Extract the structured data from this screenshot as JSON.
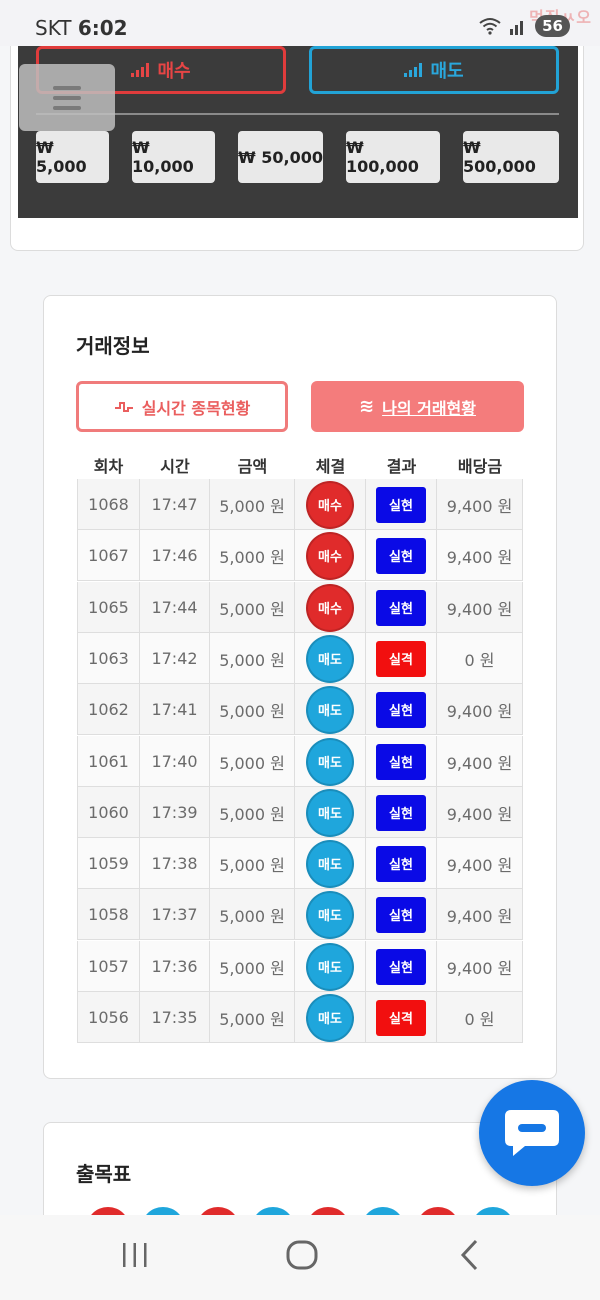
{
  "status_bar": {
    "carrier": "SKT",
    "time": "6:02",
    "battery": "56",
    "watermark": "먹짐ㅆ오"
  },
  "trade_panel": {
    "buy_label": "매수",
    "sell_label": "매도",
    "amounts": [
      "₩ 5,000",
      "₩ 10,000",
      "₩ 50,000",
      "₩ 100,000",
      "₩ 500,000"
    ]
  },
  "trade_info": {
    "title": "거래정보",
    "tab_live": "실시간 종목현황",
    "tab_mine": "나의 거래현황",
    "columns": [
      "회차",
      "시간",
      "금액",
      "체결",
      "결과",
      "배당금"
    ],
    "rows": [
      {
        "round": "1068",
        "time": "17:47",
        "amount": "5,000 원",
        "exec": "매수",
        "result": "실현",
        "payout": "9,400 원"
      },
      {
        "round": "1067",
        "time": "17:46",
        "amount": "5,000 원",
        "exec": "매수",
        "result": "실현",
        "payout": "9,400 원"
      },
      {
        "round": "1065",
        "time": "17:44",
        "amount": "5,000 원",
        "exec": "매수",
        "result": "실현",
        "payout": "9,400 원"
      },
      {
        "round": "1063",
        "time": "17:42",
        "amount": "5,000 원",
        "exec": "매도",
        "result": "실격",
        "payout": "0 원"
      },
      {
        "round": "1062",
        "time": "17:41",
        "amount": "5,000 원",
        "exec": "매도",
        "result": "실현",
        "payout": "9,400 원"
      },
      {
        "round": "1061",
        "time": "17:40",
        "amount": "5,000 원",
        "exec": "매도",
        "result": "실현",
        "payout": "9,400 원"
      },
      {
        "round": "1060",
        "time": "17:39",
        "amount": "5,000 원",
        "exec": "매도",
        "result": "실현",
        "payout": "9,400 원"
      },
      {
        "round": "1059",
        "time": "17:38",
        "amount": "5,000 원",
        "exec": "매도",
        "result": "실현",
        "payout": "9,400 원"
      },
      {
        "round": "1058",
        "time": "17:37",
        "amount": "5,000 원",
        "exec": "매도",
        "result": "실현",
        "payout": "9,400 원"
      },
      {
        "round": "1057",
        "time": "17:36",
        "amount": "5,000 원",
        "exec": "매도",
        "result": "실현",
        "payout": "9,400 원"
      },
      {
        "round": "1056",
        "time": "17:35",
        "amount": "5,000 원",
        "exec": "매도",
        "result": "실격",
        "payout": "0 원"
      }
    ]
  },
  "results_board": {
    "title": "출목표",
    "dots": [
      "red",
      "blue",
      "red",
      "blue",
      "red",
      "blue",
      "red",
      "blue"
    ]
  },
  "colors": {
    "buy": "#e02b2b",
    "sell": "#1fa6dc",
    "win": "#0a0ae6",
    "lose": "#f20f0f",
    "dark_panel": "#3b3b3b",
    "tab_active": "#f47c7c",
    "chat_fab": "#1677e5"
  },
  "icons": {
    "buy": "signal-bars-icon",
    "sell": "signal-bars-icon",
    "menu": "hamburger-icon",
    "live_tab": "pulse-wave-icon",
    "mine_tab": "lines-icon",
    "chat": "chat-bubble-icon",
    "nav": [
      "recent-apps-icon",
      "home-icon",
      "back-icon"
    ]
  }
}
